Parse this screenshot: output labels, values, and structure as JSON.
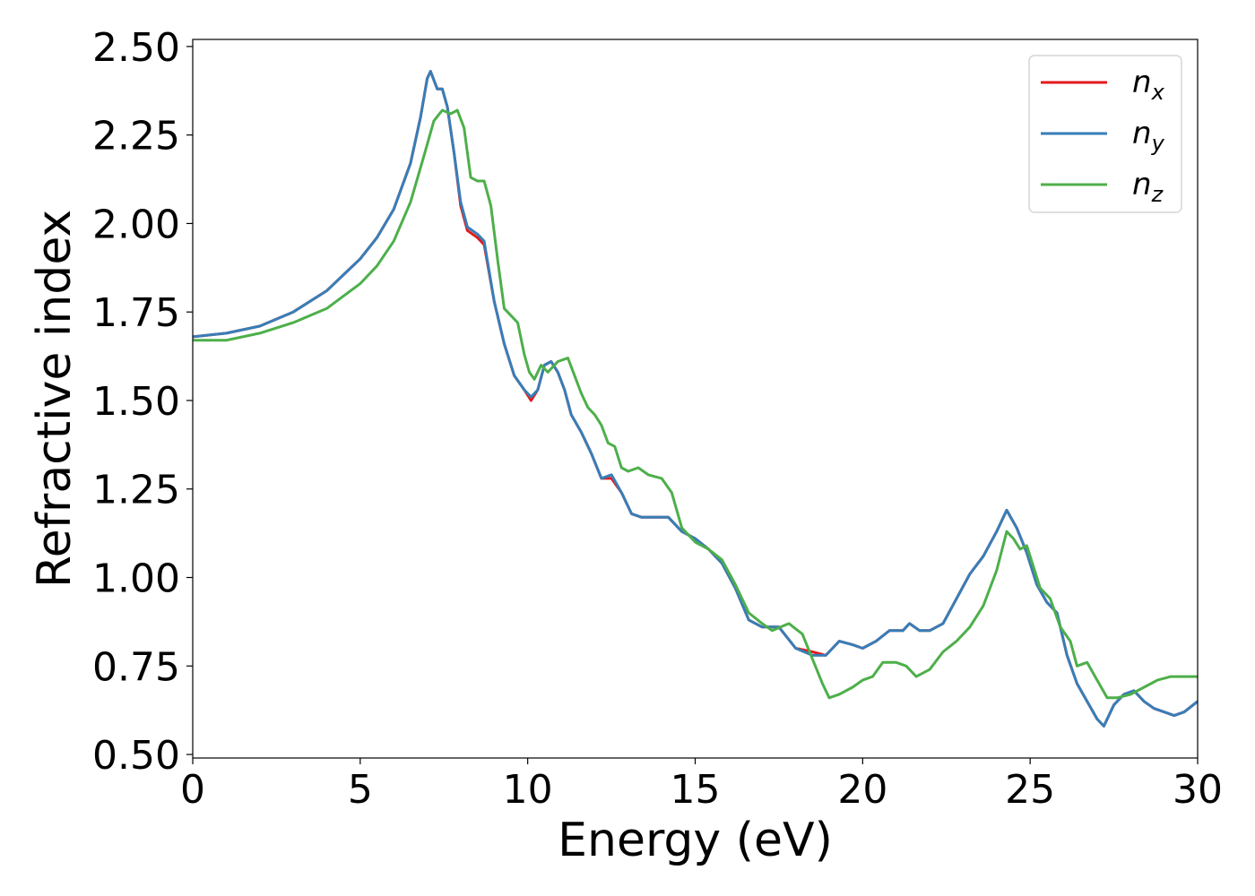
{
  "chart_data": {
    "type": "line",
    "xlabel": "Energy (eV)",
    "ylabel": "Refractive index",
    "xlim": [
      0,
      30
    ],
    "ylim": [
      0.49,
      2.52
    ],
    "xticks": [
      0,
      5,
      10,
      15,
      20,
      25,
      30
    ],
    "xtick_labels": [
      "0",
      "5",
      "10",
      "15",
      "20",
      "25",
      "30"
    ],
    "yticks": [
      0.5,
      0.75,
      1.0,
      1.25,
      1.5,
      1.75,
      2.0,
      2.25,
      2.5
    ],
    "ytick_labels": [
      "0.50",
      "0.75",
      "1.00",
      "1.25",
      "1.50",
      "1.75",
      "2.00",
      "2.25",
      "2.50"
    ],
    "grid": false,
    "legend_position": "top-right",
    "series": [
      {
        "name": "n",
        "subscript": "x",
        "color": "#e41a1c",
        "x": [
          0,
          1,
          2,
          3,
          4,
          5,
          5.5,
          6,
          6.5,
          6.8,
          7.0,
          7.1,
          7.3,
          7.45,
          7.6,
          7.8,
          8.0,
          8.2,
          8.5,
          8.7,
          9.0,
          9.3,
          9.6,
          9.9,
          10.1,
          10.3,
          10.5,
          10.7,
          10.9,
          11.1,
          11.3,
          11.6,
          11.9,
          12.2,
          12.5,
          12.8,
          13.1,
          13.4,
          13.8,
          14.2,
          14.6,
          15.0,
          15.4,
          15.8,
          16.2,
          16.6,
          17.0,
          17.5,
          18.0,
          18.5,
          18.9,
          19.3,
          19.7,
          20.0,
          20.4,
          20.8,
          21.2,
          21.4,
          21.7,
          22.0,
          22.4,
          22.8,
          23.2,
          23.6,
          24.0,
          24.3,
          24.6,
          24.9,
          25.2,
          25.5,
          25.8,
          26.1,
          26.4,
          26.7,
          27.0,
          27.2,
          27.5,
          27.8,
          28.1,
          28.4,
          28.7,
          29.0,
          29.3,
          29.6,
          30.0
        ],
        "y": [
          1.68,
          1.69,
          1.71,
          1.75,
          1.81,
          1.9,
          1.96,
          2.04,
          2.17,
          2.3,
          2.41,
          2.43,
          2.38,
          2.38,
          2.33,
          2.2,
          2.05,
          1.98,
          1.96,
          1.94,
          1.78,
          1.66,
          1.57,
          1.53,
          1.5,
          1.53,
          1.6,
          1.61,
          1.58,
          1.53,
          1.46,
          1.41,
          1.35,
          1.28,
          1.28,
          1.24,
          1.18,
          1.17,
          1.17,
          1.17,
          1.13,
          1.11,
          1.08,
          1.04,
          0.97,
          0.88,
          0.86,
          0.86,
          0.8,
          0.79,
          0.78,
          0.82,
          0.81,
          0.8,
          0.82,
          0.85,
          0.85,
          0.87,
          0.85,
          0.85,
          0.87,
          0.94,
          1.01,
          1.06,
          1.13,
          1.19,
          1.14,
          1.07,
          0.98,
          0.93,
          0.9,
          0.78,
          0.7,
          0.65,
          0.6,
          0.58,
          0.64,
          0.67,
          0.68,
          0.65,
          0.63,
          0.62,
          0.61,
          0.62,
          0.65
        ]
      },
      {
        "name": "n",
        "subscript": "y",
        "color": "#377eb8",
        "x": [
          0,
          1,
          2,
          3,
          4,
          5,
          5.5,
          6,
          6.5,
          6.8,
          7.0,
          7.1,
          7.3,
          7.45,
          7.6,
          7.8,
          8.0,
          8.2,
          8.5,
          8.7,
          9.0,
          9.3,
          9.6,
          9.9,
          10.1,
          10.3,
          10.5,
          10.7,
          10.9,
          11.1,
          11.3,
          11.6,
          11.9,
          12.2,
          12.5,
          12.8,
          13.1,
          13.4,
          13.8,
          14.2,
          14.6,
          15.0,
          15.4,
          15.8,
          16.2,
          16.6,
          17.0,
          17.5,
          18.0,
          18.5,
          18.9,
          19.3,
          19.7,
          20.0,
          20.4,
          20.8,
          21.2,
          21.4,
          21.7,
          22.0,
          22.4,
          22.8,
          23.2,
          23.6,
          24.0,
          24.3,
          24.6,
          24.9,
          25.2,
          25.5,
          25.8,
          26.1,
          26.4,
          26.7,
          27.0,
          27.2,
          27.5,
          27.8,
          28.1,
          28.4,
          28.7,
          29.0,
          29.3,
          29.6,
          30.0
        ],
        "y": [
          1.68,
          1.69,
          1.71,
          1.75,
          1.81,
          1.9,
          1.96,
          2.04,
          2.17,
          2.3,
          2.41,
          2.43,
          2.38,
          2.38,
          2.33,
          2.2,
          2.06,
          1.99,
          1.97,
          1.95,
          1.78,
          1.66,
          1.57,
          1.53,
          1.51,
          1.53,
          1.6,
          1.61,
          1.58,
          1.53,
          1.46,
          1.41,
          1.35,
          1.28,
          1.29,
          1.24,
          1.18,
          1.17,
          1.17,
          1.17,
          1.13,
          1.11,
          1.08,
          1.04,
          0.97,
          0.88,
          0.86,
          0.86,
          0.8,
          0.78,
          0.78,
          0.82,
          0.81,
          0.8,
          0.82,
          0.85,
          0.85,
          0.87,
          0.85,
          0.85,
          0.87,
          0.94,
          1.01,
          1.06,
          1.13,
          1.19,
          1.14,
          1.07,
          0.98,
          0.93,
          0.9,
          0.78,
          0.7,
          0.65,
          0.6,
          0.58,
          0.64,
          0.67,
          0.68,
          0.65,
          0.63,
          0.62,
          0.61,
          0.62,
          0.65
        ]
      },
      {
        "name": "n",
        "subscript": "z",
        "color": "#4daf4a",
        "x": [
          0,
          1,
          2,
          3,
          4,
          5,
          5.5,
          6,
          6.5,
          6.9,
          7.2,
          7.45,
          7.7,
          7.9,
          8.1,
          8.3,
          8.5,
          8.7,
          8.9,
          9.1,
          9.3,
          9.5,
          9.7,
          9.9,
          10.05,
          10.2,
          10.4,
          10.6,
          10.9,
          11.2,
          11.4,
          11.6,
          11.8,
          12.0,
          12.2,
          12.4,
          12.6,
          12.8,
          13.0,
          13.3,
          13.6,
          14.0,
          14.3,
          14.6,
          15.0,
          15.4,
          15.8,
          16.2,
          16.6,
          17.0,
          17.3,
          17.8,
          18.2,
          18.5,
          18.8,
          19.0,
          19.3,
          19.7,
          20.0,
          20.3,
          20.6,
          21.0,
          21.3,
          21.6,
          22.0,
          22.4,
          22.8,
          23.2,
          23.6,
          24.0,
          24.3,
          24.5,
          24.7,
          24.9,
          25.1,
          25.3,
          25.6,
          25.9,
          26.2,
          26.4,
          26.7,
          27.0,
          27.3,
          27.6,
          28.0,
          28.4,
          28.8,
          29.2,
          29.6,
          30.0
        ],
        "y": [
          1.67,
          1.67,
          1.69,
          1.72,
          1.76,
          1.83,
          1.88,
          1.95,
          2.06,
          2.19,
          2.29,
          2.32,
          2.31,
          2.32,
          2.27,
          2.13,
          2.12,
          2.12,
          2.05,
          1.9,
          1.76,
          1.74,
          1.72,
          1.63,
          1.58,
          1.56,
          1.6,
          1.58,
          1.61,
          1.62,
          1.57,
          1.52,
          1.48,
          1.46,
          1.43,
          1.38,
          1.37,
          1.31,
          1.3,
          1.31,
          1.29,
          1.28,
          1.24,
          1.14,
          1.1,
          1.08,
          1.05,
          0.98,
          0.9,
          0.87,
          0.85,
          0.87,
          0.84,
          0.77,
          0.7,
          0.66,
          0.67,
          0.69,
          0.71,
          0.72,
          0.76,
          0.76,
          0.75,
          0.72,
          0.74,
          0.79,
          0.82,
          0.86,
          0.92,
          1.02,
          1.13,
          1.11,
          1.08,
          1.09,
          1.03,
          0.97,
          0.94,
          0.86,
          0.82,
          0.75,
          0.76,
          0.71,
          0.66,
          0.66,
          0.67,
          0.69,
          0.71,
          0.72,
          0.72,
          0.72
        ]
      }
    ]
  }
}
